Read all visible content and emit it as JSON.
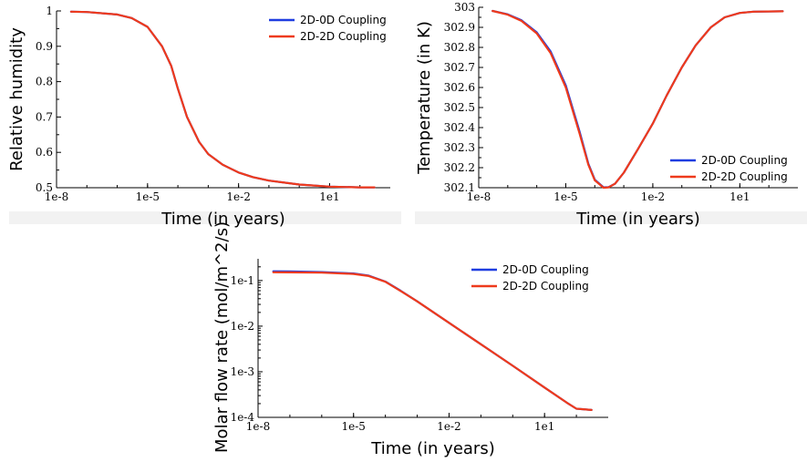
{
  "colors": {
    "series_0d": "#1f3de0",
    "series_2d": "#ee3a1c"
  },
  "chart_data": [
    {
      "id": "rh",
      "type": "line",
      "xlabel": "Time (in years)",
      "ylabel": "Relative humidity",
      "xscale": "log",
      "xlim": [
        1e-08,
        1000
      ],
      "ylim": [
        0.5,
        1
      ],
      "xticks": [
        1e-08,
        1e-05,
        0.01,
        10
      ],
      "xtick_labels": [
        "1e-8",
        "1e-5",
        "1e-2",
        "1e1"
      ],
      "yticks": [
        0.5,
        0.6,
        0.7,
        0.8,
        0.9,
        1
      ],
      "ytick_labels": [
        "0.5",
        "0.6",
        "0.7",
        "0.8",
        "0.9",
        "1"
      ],
      "legend_position": "top-right",
      "x": [
        3e-08,
        1e-07,
        1e-06,
        3e-06,
        1e-05,
        3e-05,
        6e-05,
        0.0001,
        0.0002,
        0.0005,
        0.001,
        0.003,
        0.01,
        0.03,
        0.1,
        1,
        10,
        100,
        300
      ],
      "series": [
        {
          "name": "2D-0D Coupling",
          "color": "#1f3de0",
          "values": [
            0.998,
            0.997,
            0.99,
            0.98,
            0.955,
            0.9,
            0.845,
            0.78,
            0.7,
            0.63,
            0.595,
            0.565,
            0.543,
            0.53,
            0.52,
            0.509,
            0.503,
            0.501,
            0.501
          ]
        },
        {
          "name": "2D-2D Coupling",
          "color": "#ee3a1c",
          "values": [
            0.998,
            0.997,
            0.99,
            0.98,
            0.955,
            0.9,
            0.845,
            0.78,
            0.7,
            0.63,
            0.595,
            0.565,
            0.543,
            0.53,
            0.52,
            0.509,
            0.503,
            0.501,
            0.501
          ]
        }
      ]
    },
    {
      "id": "temp",
      "type": "line",
      "xlabel": "Time (in years)",
      "ylabel": "Temperature (in K)",
      "xscale": "log",
      "xlim": [
        1e-08,
        1000
      ],
      "ylim": [
        302.1,
        303
      ],
      "xticks": [
        1e-08,
        1e-05,
        0.01,
        10
      ],
      "xtick_labels": [
        "1e-8",
        "1e-5",
        "1e-2",
        "1e1"
      ],
      "yticks": [
        302.1,
        302.2,
        302.3,
        302.4,
        302.5,
        302.6,
        302.7,
        302.8,
        302.9,
        303
      ],
      "ytick_labels": [
        "302.1",
        "302.2",
        "302.3",
        "302.4",
        "302.5",
        "302.6",
        "302.7",
        "302.8",
        "302.9",
        "303"
      ],
      "legend_position": "bottom-right",
      "x": [
        3e-08,
        1e-07,
        3e-07,
        1e-06,
        3e-06,
        1e-05,
        3e-05,
        6e-05,
        0.0001,
        0.0002,
        0.0003,
        0.0005,
        0.001,
        0.003,
        0.01,
        0.03,
        0.1,
        0.3,
        1,
        3,
        10,
        30,
        300
      ],
      "series": [
        {
          "name": "2D-0D Coupling",
          "color": "#1f3de0",
          "values": [
            302.982,
            302.965,
            302.935,
            302.875,
            302.78,
            302.61,
            302.38,
            302.22,
            302.14,
            302.102,
            302.103,
            302.12,
            302.175,
            302.29,
            302.42,
            302.56,
            302.7,
            302.81,
            302.9,
            302.95,
            302.972,
            302.978,
            302.98
          ]
        },
        {
          "name": "2D-2D Coupling",
          "color": "#ee3a1c",
          "values": [
            302.982,
            302.963,
            302.932,
            302.87,
            302.772,
            302.6,
            302.37,
            302.215,
            302.137,
            302.1,
            302.102,
            302.12,
            302.175,
            302.29,
            302.42,
            302.56,
            302.7,
            302.81,
            302.9,
            302.95,
            302.972,
            302.978,
            302.98
          ]
        }
      ]
    },
    {
      "id": "flow",
      "type": "line",
      "xlabel": "Time (in years)",
      "ylabel": "Molar flow rate (mol/m^2/s)",
      "xscale": "log",
      "yscale": "log",
      "xlim": [
        1e-08,
        1000
      ],
      "ylim": [
        0.0001,
        0.3
      ],
      "xticks": [
        1e-08,
        1e-05,
        0.01,
        10
      ],
      "xtick_labels": [
        "1e-8",
        "1e-5",
        "1e-2",
        "1e1"
      ],
      "yticks": [
        0.0001,
        0.001,
        0.01,
        0.1
      ],
      "ytick_labels": [
        "1e-4",
        "1e-3",
        "1e-2",
        "1e-1"
      ],
      "legend_position": "top-right",
      "x": [
        3e-08,
        1e-07,
        1e-06,
        1e-05,
        3e-05,
        0.0001,
        0.0003,
        0.001,
        0.01,
        0.1,
        1,
        10,
        50,
        100,
        300
      ],
      "series": [
        {
          "name": "2D-0D Coupling",
          "color": "#1f3de0",
          "values": [
            0.16,
            0.158,
            0.153,
            0.143,
            0.128,
            0.095,
            0.06,
            0.035,
            0.0118,
            0.004,
            0.00135,
            0.00045,
            0.00021,
            0.000155,
            0.000145
          ]
        },
        {
          "name": "2D-2D Coupling",
          "color": "#ee3a1c",
          "values": [
            0.152,
            0.151,
            0.149,
            0.14,
            0.126,
            0.094,
            0.059,
            0.035,
            0.0118,
            0.004,
            0.00135,
            0.00045,
            0.00021,
            0.000155,
            0.000145
          ]
        }
      ]
    }
  ]
}
